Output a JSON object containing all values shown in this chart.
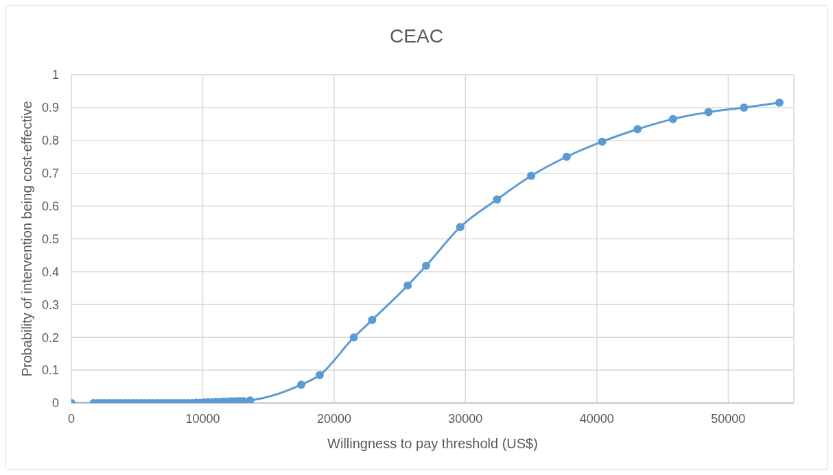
{
  "chart_data": {
    "type": "line",
    "title": "CEAC",
    "xlabel": "Willingness to pay threshold (US$)",
    "ylabel": "Probability of intervention being cost-effective",
    "x": [
      0,
      1700,
      2000,
      2300,
      2600,
      2900,
      3200,
      3500,
      3800,
      4100,
      4400,
      4700,
      5000,
      5300,
      5600,
      5900,
      6200,
      6500,
      6800,
      7100,
      7400,
      7700,
      8000,
      8300,
      8600,
      8900,
      9200,
      9500,
      9800,
      10100,
      10400,
      10700,
      11000,
      11300,
      11600,
      11900,
      12200,
      12500,
      12800,
      13100,
      13600,
      17500,
      18900,
      21500,
      22900,
      25600,
      27000,
      29600,
      32400,
      35000,
      37700,
      40400,
      43100,
      45800,
      48500,
      51200,
      53900
    ],
    "series": [
      {
        "color": "#5b9bd5",
        "values": [
          0,
          0,
          0,
          0,
          0,
          0,
          0,
          0,
          0,
          0,
          0,
          0,
          0,
          0,
          0,
          0,
          0,
          0,
          0,
          0,
          0,
          0,
          0,
          0,
          0,
          0,
          0,
          0.001,
          0.001,
          0.002,
          0.002,
          0.002,
          0.003,
          0.003,
          0.004,
          0.004,
          0.005,
          0.005,
          0.006,
          0.006,
          0.008,
          0.056,
          0.085,
          0.2,
          0.253,
          0.358,
          0.418,
          0.536,
          0.62,
          0.692,
          0.75,
          0.796,
          0.834,
          0.865,
          0.886,
          0.9,
          0.915
        ]
      }
    ],
    "xlim": [
      0,
      55000
    ],
    "xticks": [
      0,
      10000,
      20000,
      30000,
      40000,
      50000
    ],
    "ylim": [
      0,
      1
    ],
    "yticks": [
      0,
      0.1,
      0.2,
      0.3,
      0.4,
      0.5,
      0.6,
      0.7,
      0.8,
      0.9,
      1
    ],
    "grid": true,
    "marker": "circle",
    "line_style": "solid",
    "legend": false
  }
}
